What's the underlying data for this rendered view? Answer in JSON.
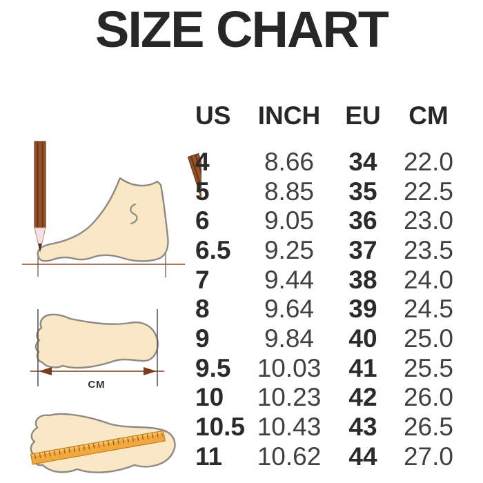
{
  "title": "SIZE CHART",
  "chart_data": {
    "type": "table",
    "title": "SIZE CHART",
    "columns": [
      "US",
      "INCH",
      "EU",
      "CM"
    ],
    "rows": [
      [
        "4",
        "8.66",
        "34",
        "22.0"
      ],
      [
        "5",
        "8.85",
        "35",
        "22.5"
      ],
      [
        "6",
        "9.05",
        "36",
        "23.0"
      ],
      [
        "6.5",
        "9.25",
        "37",
        "23.5"
      ],
      [
        "7",
        "9.44",
        "38",
        "24.0"
      ],
      [
        "8",
        "9.64",
        "39",
        "24.5"
      ],
      [
        "9",
        "9.84",
        "40",
        "25.0"
      ],
      [
        "9.5",
        "10.03",
        "41",
        "25.5"
      ],
      [
        "10",
        "10.23",
        "42",
        "26.0"
      ],
      [
        "10.5",
        "10.43",
        "43",
        "26.5"
      ],
      [
        "11",
        "10.62",
        "44",
        "27.0"
      ]
    ]
  },
  "illustrations": {
    "foot_side_measure": {
      "icon": "foot-between-pencils-icon"
    },
    "footprint_length": {
      "icon": "footprint-arrow-icon",
      "label": "CM"
    },
    "footprint_ruler": {
      "icon": "footprint-ruler-icon"
    }
  },
  "colors": {
    "text_dark": "#272727",
    "text_regular": "#404040",
    "skin_fill": "#fae7c5",
    "outline_gray": "#8d8984",
    "pencil_brown": "#94512a",
    "measure_line_brown": "#7d3a1c",
    "ruler_orange": "#f3a740"
  }
}
